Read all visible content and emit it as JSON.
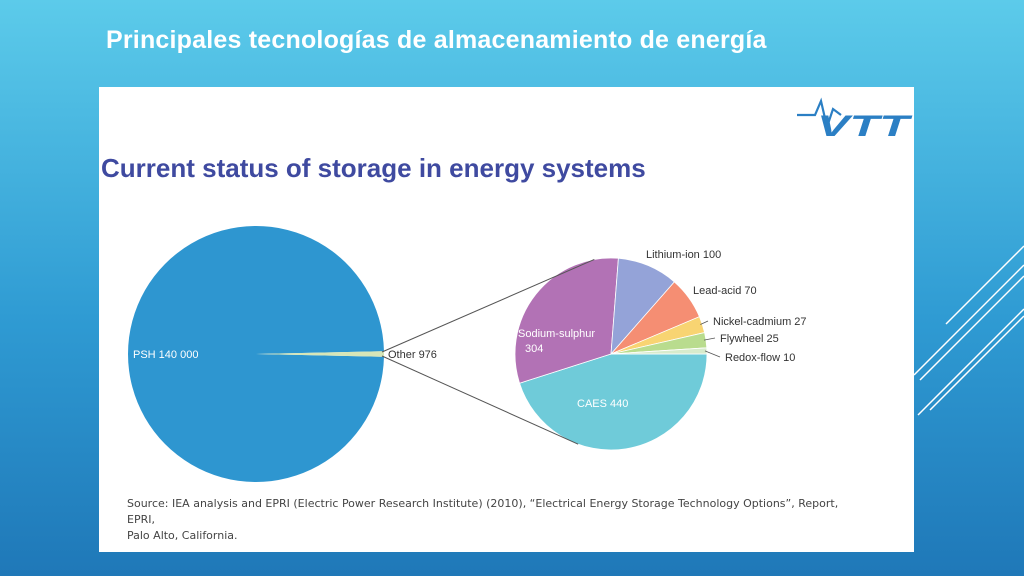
{
  "slide": {
    "title": "Principales tecnologías de almacenamiento de energía"
  },
  "panel": {
    "title": "Current status of storage in energy systems",
    "logo_text": "VTT",
    "source_line1": "Source: IEA analysis and EPRI (Electric Power Research Institute) (2010), “Electrical Energy Storage Technology Options”, Report, EPRI,",
    "source_line2": "Palo Alto, California."
  },
  "colors": {
    "background_top": "#5ccbea",
    "background_bottom": "#1f78b8",
    "title_accent": "#3f4aa0",
    "logo": "#2b7fc4"
  },
  "chart_data": [
    {
      "type": "pie",
      "title": "",
      "slices": [
        {
          "label": "PSH",
          "value": 140000,
          "display": "PSH 140 000",
          "color": "#2e96d0"
        },
        {
          "label": "Other",
          "value": 976,
          "display": "Other  976",
          "color": "#d6e6b8"
        }
      ]
    },
    {
      "type": "pie",
      "title": "",
      "note": "breakdown of Other",
      "slices": [
        {
          "label": "CAES",
          "value": 440,
          "display": "CAES  440",
          "color": "#6fcbd9"
        },
        {
          "label": "Sodium-sulphur",
          "value": 304,
          "display_line1": "Sodium-sulphur",
          "display_line2": "304",
          "color": "#b272b5"
        },
        {
          "label": "Lithium-ion",
          "value": 100,
          "display": "Lithium-ion  100",
          "color": "#94a3d8"
        },
        {
          "label": "Lead-acid",
          "value": 70,
          "display": "Lead-acid  70",
          "color": "#f58e73"
        },
        {
          "label": "Nickel-cadmium",
          "value": 27,
          "display": "Nickel-cadmium  27",
          "color": "#f8d472"
        },
        {
          "label": "Flywheel",
          "value": 25,
          "display": "Flywheel  25",
          "color": "#b9dc8e"
        },
        {
          "label": "Redox-flow",
          "value": 10,
          "display": "Redox-flow  10",
          "color": "#d7ebcc"
        }
      ]
    }
  ]
}
